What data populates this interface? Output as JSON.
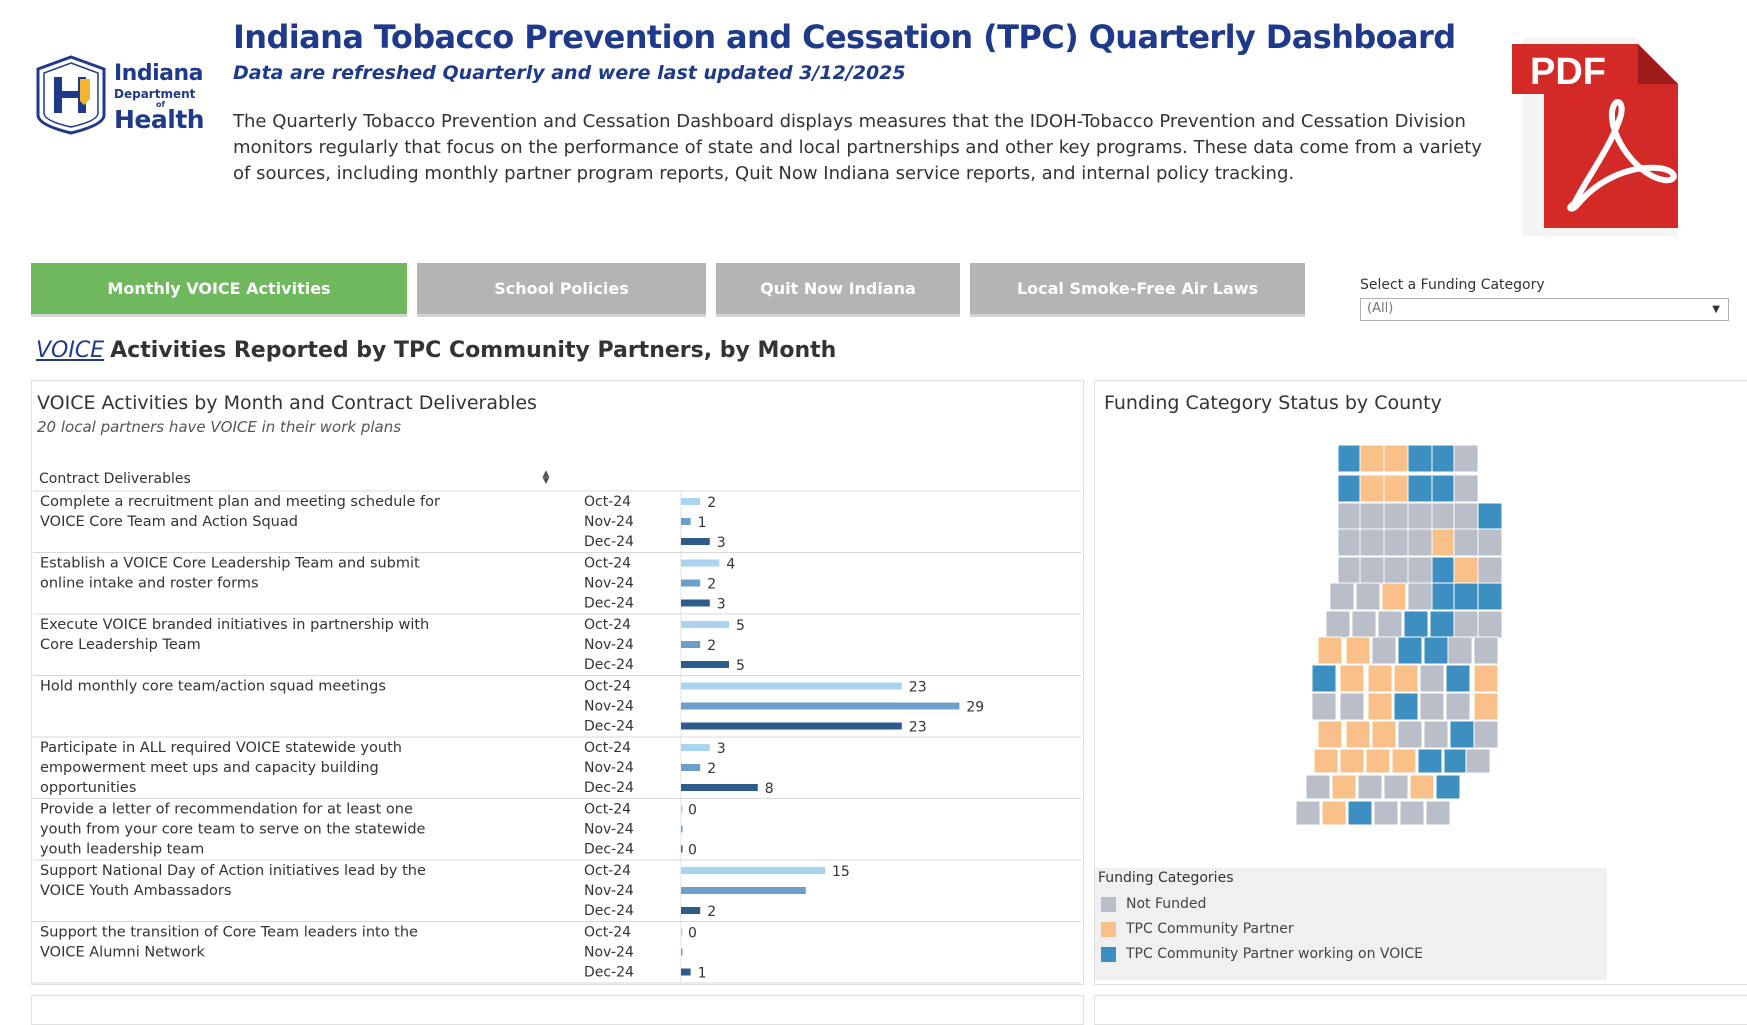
{
  "header": {
    "title": "Indiana Tobacco Prevention and Cessation (TPC) Quarterly Dashboard",
    "subtitle": "Data are refreshed Quarterly and were last updated 3/12/2025",
    "description": "The Quarterly Tobacco Prevention and Cessation Dashboard displays measures that the IDOH-Tobacco Prevention and Cessation Division monitors regularly that focus on the performance of state and local partnerships and other key programs. These data come from a variety of sources, including monthly partner program reports, Quit Now Indiana service reports, and internal policy tracking.",
    "logo": {
      "line1": "Indiana",
      "line2": "Department",
      "line3": "of",
      "line4": "Health"
    },
    "pdf_label": "PDF"
  },
  "tabs": [
    {
      "label": "Monthly VOICE Activities",
      "active": true
    },
    {
      "label": "School Policies",
      "active": false
    },
    {
      "label": "Quit Now Indiana",
      "active": false
    },
    {
      "label": "Local Smoke-Free Air Laws",
      "active": false
    }
  ],
  "filter": {
    "label": "Select a Funding Category",
    "value": "(All)"
  },
  "section": {
    "link": "VOICE",
    "heading": "Activities Reported by TPC Community Partners, by Month"
  },
  "chart_panel": {
    "title": "VOICE Activities by Month and Contract Deliverables",
    "subtitle": "20 local partners have VOICE in their work plans",
    "column_header": "Contract Deliverables"
  },
  "chart_data": {
    "type": "bar",
    "orientation": "horizontal",
    "months": [
      "Oct-24",
      "Nov-24",
      "Dec-24"
    ],
    "month_colors": [
      "#a9d4ef",
      "#6e9fc9",
      "#2e5c8a"
    ],
    "xlim": [
      0,
      29
    ],
    "groups": [
      {
        "label": "Complete a recruitment plan and meeting schedule for VOICE Core Team and Action Squad",
        "values": [
          2,
          1,
          3
        ],
        "labels": [
          "2",
          "1",
          "3"
        ]
      },
      {
        "label": "Establish a VOICE Core Leadership Team and submit online intake and roster forms",
        "values": [
          4,
          2,
          3
        ],
        "labels": [
          "4",
          "2",
          "3"
        ]
      },
      {
        "label": "Execute VOICE branded initiatives in partnership with Core Leadership Team",
        "values": [
          5,
          2,
          5
        ],
        "labels": [
          "5",
          "2",
          "5"
        ]
      },
      {
        "label": "Hold monthly core team/action squad meetings",
        "values": [
          23,
          29,
          23
        ],
        "labels": [
          "23",
          "29",
          "23"
        ]
      },
      {
        "label": "Participate in ALL required VOICE statewide youth empowerment meet ups and capacity building opportunities",
        "values": [
          3,
          2,
          8
        ],
        "labels": [
          "3",
          "2",
          "8"
        ]
      },
      {
        "label": "Provide a letter of recommendation for at least one youth from your core team to serve on the statewide youth leadership team",
        "values": [
          0,
          0,
          0
        ],
        "labels": [
          "0",
          "",
          "0"
        ]
      },
      {
        "label": "Support National Day of Action initiatives lead by the VOICE Youth Ambassadors",
        "values": [
          15,
          13,
          2
        ],
        "labels": [
          "15",
          "",
          "2"
        ]
      },
      {
        "label": "Support the transition of Core Team leaders into the VOICE Alumni Network",
        "values": [
          0,
          0,
          1
        ],
        "labels": [
          "0",
          "",
          "1"
        ]
      }
    ]
  },
  "map_panel": {
    "title": "Funding Category Status by County",
    "legend_title": "Funding Categories",
    "legend": [
      {
        "label": "Not Funded",
        "color": "#b9bec8"
      },
      {
        "label": "TPC Community Partner",
        "color": "#f9c08a"
      },
      {
        "label": "TPC Community Partner working on VOICE",
        "color": "#3d8fc2"
      }
    ]
  }
}
